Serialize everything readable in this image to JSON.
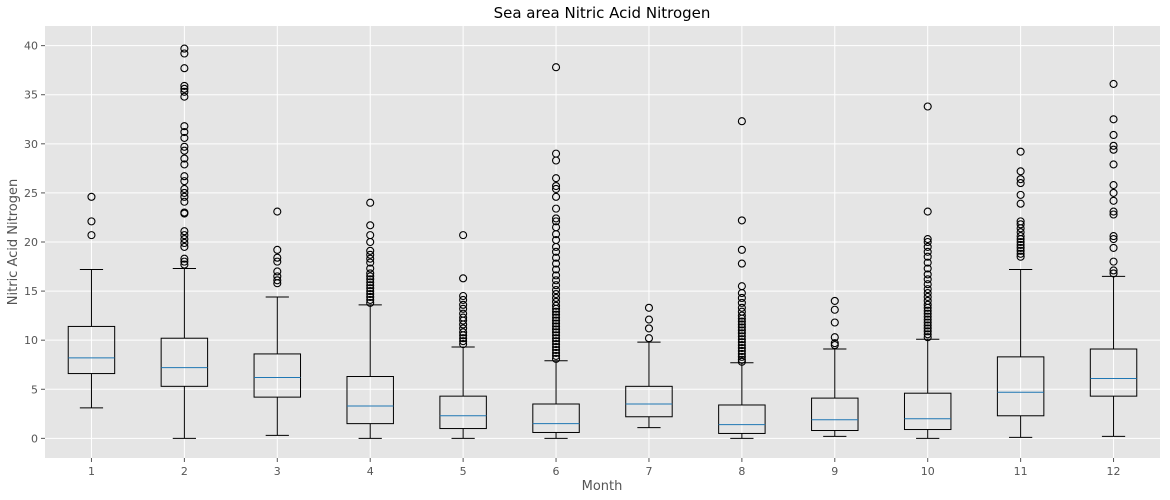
{
  "chart_data": {
    "type": "boxplot",
    "title": "Sea area Nitric Acid Nitrogen",
    "xlabel": "Month",
    "ylabel": "Nitric Acid Nitrogen",
    "categories": [
      "1",
      "2",
      "3",
      "4",
      "5",
      "6",
      "7",
      "8",
      "9",
      "10",
      "11",
      "12"
    ],
    "ylim": [
      -2,
      42
    ],
    "yticks": [
      0,
      5,
      10,
      15,
      20,
      25,
      30,
      35,
      40
    ],
    "grid": true,
    "boxes": [
      {
        "whisker_low": 3.1,
        "q1": 6.6,
        "median": 8.2,
        "q3": 11.4,
        "whisker_high": 17.2,
        "outliers": [
          20.7,
          22.1,
          24.6
        ]
      },
      {
        "whisker_low": 0.0,
        "q1": 5.3,
        "median": 7.2,
        "q3": 10.2,
        "whisker_high": 17.3,
        "outliers": [
          17.7,
          18.0,
          18.3,
          19.5,
          19.9,
          20.3,
          20.7,
          21.1,
          22.9,
          23.0,
          24.1,
          24.6,
          25.0,
          25.4,
          26.2,
          26.7,
          27.9,
          28.5,
          29.3,
          29.7,
          30.6,
          31.2,
          31.8,
          34.8,
          35.3,
          35.6,
          35.9,
          37.7,
          39.2,
          39.7
        ]
      },
      {
        "whisker_low": 0.3,
        "q1": 4.2,
        "median": 6.2,
        "q3": 8.6,
        "whisker_high": 14.4,
        "outliers": [
          15.8,
          16.1,
          16.5,
          17.0,
          18.0,
          18.4,
          19.2,
          23.1
        ]
      },
      {
        "whisker_low": 0.0,
        "q1": 1.5,
        "median": 3.3,
        "q3": 6.3,
        "whisker_high": 13.6,
        "outliers": [
          13.8,
          14.1,
          14.4,
          14.7,
          15.0,
          15.3,
          15.6,
          15.9,
          16.2,
          16.5,
          16.8,
          17.3,
          17.9,
          18.3,
          18.7,
          19.1,
          20.0,
          20.7,
          21.7,
          24.0
        ]
      },
      {
        "whisker_low": 0.0,
        "q1": 1.0,
        "median": 2.3,
        "q3": 4.3,
        "whisker_high": 9.3,
        "outliers": [
          9.6,
          9.9,
          10.2,
          10.5,
          10.8,
          11.2,
          11.6,
          12.0,
          12.3,
          12.7,
          13.2,
          13.6,
          14.1,
          14.5,
          16.3,
          20.7
        ]
      },
      {
        "whisker_low": 0.0,
        "q1": 0.6,
        "median": 1.5,
        "q3": 3.5,
        "whisker_high": 7.9,
        "outliers": [
          8.1,
          8.4,
          8.7,
          9.0,
          9.3,
          9.6,
          9.9,
          10.2,
          10.5,
          10.8,
          11.1,
          11.4,
          11.7,
          12.0,
          12.3,
          12.6,
          12.9,
          13.2,
          13.5,
          13.9,
          14.3,
          14.7,
          15.1,
          15.6,
          16.1,
          16.6,
          17.2,
          17.8,
          18.4,
          19.0,
          19.5,
          20.2,
          20.8,
          21.5,
          22.1,
          22.4,
          23.4,
          24.6,
          25.4,
          25.7,
          26.5,
          28.3,
          29.0,
          37.8
        ]
      },
      {
        "whisker_low": 1.1,
        "q1": 2.2,
        "median": 3.5,
        "q3": 5.3,
        "whisker_high": 9.8,
        "outliers": [
          10.2,
          11.2,
          12.1,
          13.3
        ]
      },
      {
        "whisker_low": 0.0,
        "q1": 0.5,
        "median": 1.4,
        "q3": 3.4,
        "whisker_high": 7.7,
        "outliers": [
          7.8,
          8.0,
          8.3,
          8.6,
          8.9,
          9.2,
          9.5,
          9.8,
          10.1,
          10.4,
          10.7,
          11.0,
          11.3,
          11.6,
          11.9,
          12.2,
          12.5,
          12.9,
          13.3,
          13.8,
          14.3,
          14.8,
          15.5,
          17.8,
          19.2,
          22.2,
          32.3
        ]
      },
      {
        "whisker_low": 0.2,
        "q1": 0.8,
        "median": 1.9,
        "q3": 4.1,
        "whisker_high": 9.1,
        "outliers": [
          9.5,
          9.7,
          10.3,
          11.8,
          13.1,
          14.0
        ]
      },
      {
        "whisker_low": 0.0,
        "q1": 0.9,
        "median": 2.0,
        "q3": 4.6,
        "whisker_high": 10.1,
        "outliers": [
          10.3,
          10.6,
          10.9,
          11.2,
          11.5,
          11.8,
          12.1,
          12.4,
          12.7,
          13.0,
          13.3,
          13.6,
          14.0,
          14.4,
          14.8,
          15.2,
          15.7,
          16.2,
          16.7,
          17.3,
          17.9,
          18.5,
          19.0,
          19.5,
          20.0,
          20.3,
          23.1,
          33.8
        ]
      },
      {
        "whisker_low": 0.1,
        "q1": 2.3,
        "median": 4.7,
        "q3": 8.3,
        "whisker_high": 17.2,
        "outliers": [
          18.5,
          18.8,
          19.1,
          19.4,
          19.7,
          20.0,
          20.3,
          20.6,
          21.0,
          21.4,
          21.8,
          22.1,
          23.9,
          24.8,
          26.0,
          26.4,
          27.2,
          29.2
        ]
      },
      {
        "whisker_low": 0.2,
        "q1": 4.3,
        "median": 6.1,
        "q3": 9.1,
        "whisker_high": 16.5,
        "outliers": [
          16.8,
          17.1,
          18.0,
          19.4,
          20.3,
          20.6,
          22.8,
          23.1,
          24.2,
          25.0,
          25.8,
          27.9,
          29.4,
          29.8,
          30.9,
          32.5,
          36.1
        ]
      }
    ]
  }
}
